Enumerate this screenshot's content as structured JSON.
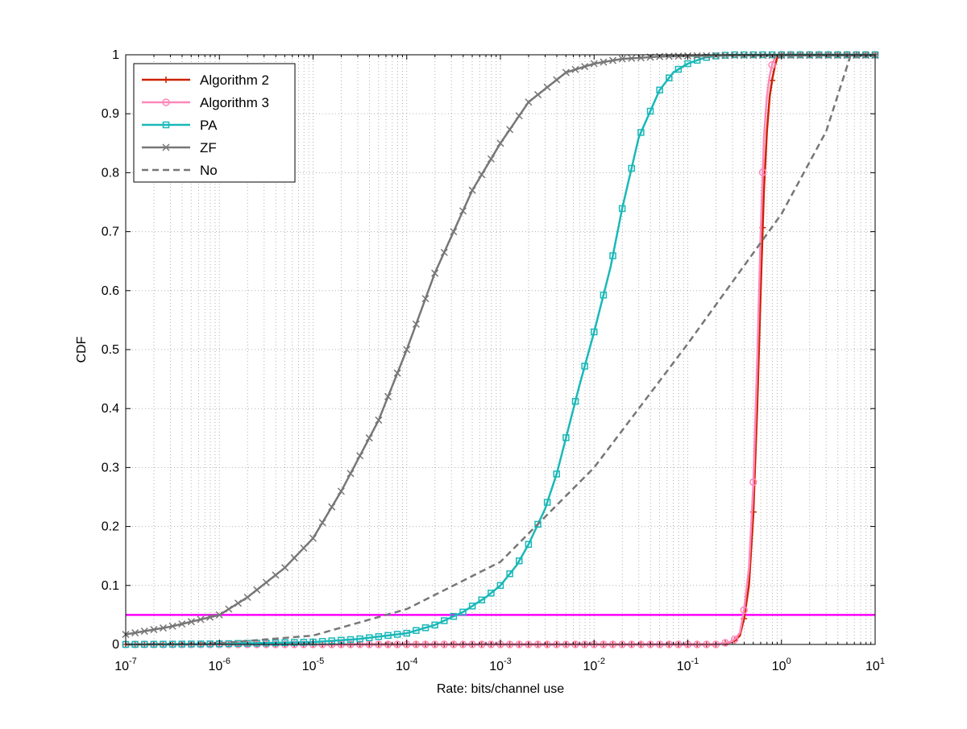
{
  "chart_data": {
    "type": "line",
    "title": "",
    "xlabel": "Rate: bits/channel use",
    "ylabel": "CDF",
    "xscale": "log",
    "xlim": [
      1e-07,
      10
    ],
    "ylim": [
      0,
      1
    ],
    "x_ticks": [
      {
        "base": "10",
        "exp": "-7",
        "value": 1e-07
      },
      {
        "base": "10",
        "exp": "-6",
        "value": 1e-06
      },
      {
        "base": "10",
        "exp": "-5",
        "value": 1e-05
      },
      {
        "base": "10",
        "exp": "-4",
        "value": 0.0001
      },
      {
        "base": "10",
        "exp": "-3",
        "value": 0.001
      },
      {
        "base": "10",
        "exp": "-2",
        "value": 0.01
      },
      {
        "base": "10",
        "exp": "-1",
        "value": 0.1
      },
      {
        "base": "10",
        "exp": "0",
        "value": 1
      },
      {
        "base": "10",
        "exp": "1",
        "value": 10
      }
    ],
    "y_ticks": [
      "0",
      "0.1",
      "0.2",
      "0.3",
      "0.4",
      "0.5",
      "0.6",
      "0.7",
      "0.8",
      "0.9",
      "1"
    ],
    "grid": true,
    "legend_position": "top-left",
    "reference_line": {
      "y": 0.05,
      "color": "#ff00ff"
    },
    "series": [
      {
        "name": "Algorithm 2",
        "color": "#cc2200",
        "marker": "plus",
        "dash": false,
        "x": [
          1e-07,
          1e-06,
          1e-05,
          0.0001,
          0.001,
          0.01,
          0.05,
          0.1,
          0.2,
          0.28,
          0.32,
          0.36,
          0.4,
          0.45,
          0.5,
          0.55,
          0.6,
          0.65,
          0.7,
          0.75,
          0.8,
          0.85,
          0.9,
          1,
          2,
          5,
          10
        ],
        "y": [
          0,
          0,
          0,
          0,
          0,
          0,
          0,
          0,
          0,
          0.003,
          0.007,
          0.015,
          0.045,
          0.1,
          0.22,
          0.4,
          0.6,
          0.77,
          0.87,
          0.93,
          0.96,
          0.98,
          0.995,
          1,
          1,
          1,
          1
        ]
      },
      {
        "name": "Algorithm 3",
        "color": "#ff88bb",
        "marker": "circle",
        "dash": false,
        "x": [
          1e-07,
          1e-06,
          1e-05,
          0.0001,
          0.001,
          0.01,
          0.05,
          0.1,
          0.2,
          0.28,
          0.32,
          0.36,
          0.4,
          0.45,
          0.5,
          0.55,
          0.6,
          0.65,
          0.7,
          0.75,
          0.8,
          0.85,
          0.9,
          1,
          2,
          5,
          10
        ],
        "y": [
          0,
          0,
          0,
          0,
          0,
          0,
          0,
          0,
          0,
          0.004,
          0.009,
          0.02,
          0.06,
          0.13,
          0.27,
          0.48,
          0.7,
          0.86,
          0.93,
          0.965,
          0.985,
          0.995,
          1,
          1,
          1,
          1,
          1
        ]
      },
      {
        "name": "PA",
        "color": "#1ab8b8",
        "marker": "square",
        "dash": false,
        "x": [
          1e-07,
          1e-06,
          1e-05,
          3e-05,
          0.0001,
          0.0002,
          0.0004,
          0.0007,
          0.001,
          0.0015,
          0.002,
          0.003,
          0.004,
          0.005,
          0.007,
          0.01,
          0.015,
          0.02,
          0.03,
          0.05,
          0.07,
          0.1,
          0.15,
          0.2,
          0.3,
          0.5,
          1,
          10
        ],
        "y": [
          0,
          0.001,
          0.004,
          0.009,
          0.019,
          0.033,
          0.055,
          0.08,
          0.1,
          0.135,
          0.17,
          0.23,
          0.29,
          0.35,
          0.44,
          0.53,
          0.64,
          0.74,
          0.86,
          0.94,
          0.97,
          0.985,
          0.995,
          0.998,
          1,
          1,
          1,
          1
        ]
      },
      {
        "name": "ZF",
        "color": "#777777",
        "marker": "x",
        "dash": false,
        "x": [
          1e-07,
          3e-07,
          1e-06,
          2e-06,
          5e-06,
          1e-05,
          2e-05,
          5e-05,
          0.0001,
          0.0002,
          0.0005,
          0.001,
          0.002,
          0.005,
          0.01,
          0.02,
          0.05,
          0.1,
          0.3,
          1,
          3,
          10
        ],
        "y": [
          0.017,
          0.03,
          0.05,
          0.08,
          0.13,
          0.18,
          0.26,
          0.38,
          0.5,
          0.63,
          0.77,
          0.85,
          0.92,
          0.97,
          0.985,
          0.993,
          0.997,
          0.998,
          0.999,
          0.999,
          0.999,
          0.999
        ]
      },
      {
        "name": "No",
        "color": "#777777",
        "marker": "none",
        "dash": true,
        "x": [
          1e-07,
          1e-06,
          1e-05,
          0.0001,
          0.001,
          0.01,
          0.1,
          1,
          3,
          5.5
        ],
        "y": [
          0,
          0.002,
          0.015,
          0.06,
          0.14,
          0.3,
          0.51,
          0.73,
          0.87,
          1
        ]
      }
    ]
  }
}
